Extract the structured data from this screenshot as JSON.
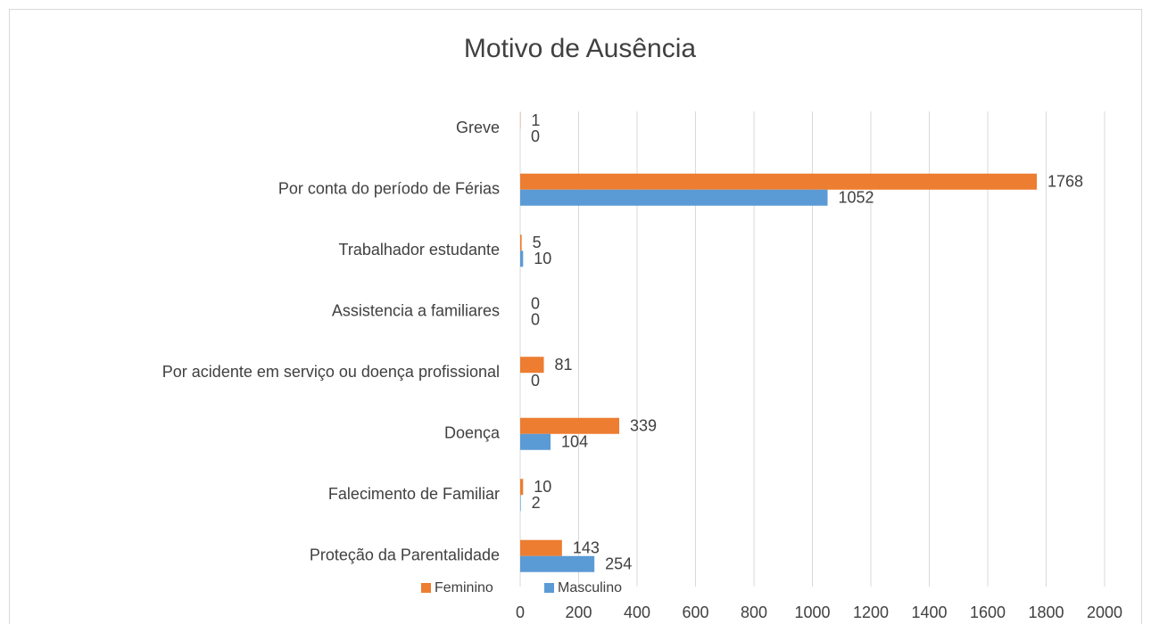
{
  "chart_data": {
    "type": "bar",
    "orientation": "horizontal",
    "title": "Motivo de Ausência",
    "categories": [
      "Greve",
      "Por conta do período de Férias",
      "Trabalhador estudante",
      "Assistencia a familiares",
      "Por acidente em serviço ou doença profissional",
      "Doença",
      "Falecimento de Familiar",
      "Proteção da Parentalidade"
    ],
    "series": [
      {
        "name": "Feminino",
        "color": "#ed7d31",
        "values": [
          1,
          1768,
          5,
          0,
          81,
          339,
          10,
          143
        ]
      },
      {
        "name": "Masculino",
        "color": "#5b9bd5",
        "values": [
          0,
          1052,
          10,
          0,
          0,
          104,
          2,
          254
        ]
      }
    ],
    "xlim": [
      0,
      2000
    ],
    "xticks": [
      0,
      200,
      400,
      600,
      800,
      1000,
      1200,
      1400,
      1600,
      1800,
      2000
    ],
    "grid": true,
    "legend": "bottom"
  }
}
